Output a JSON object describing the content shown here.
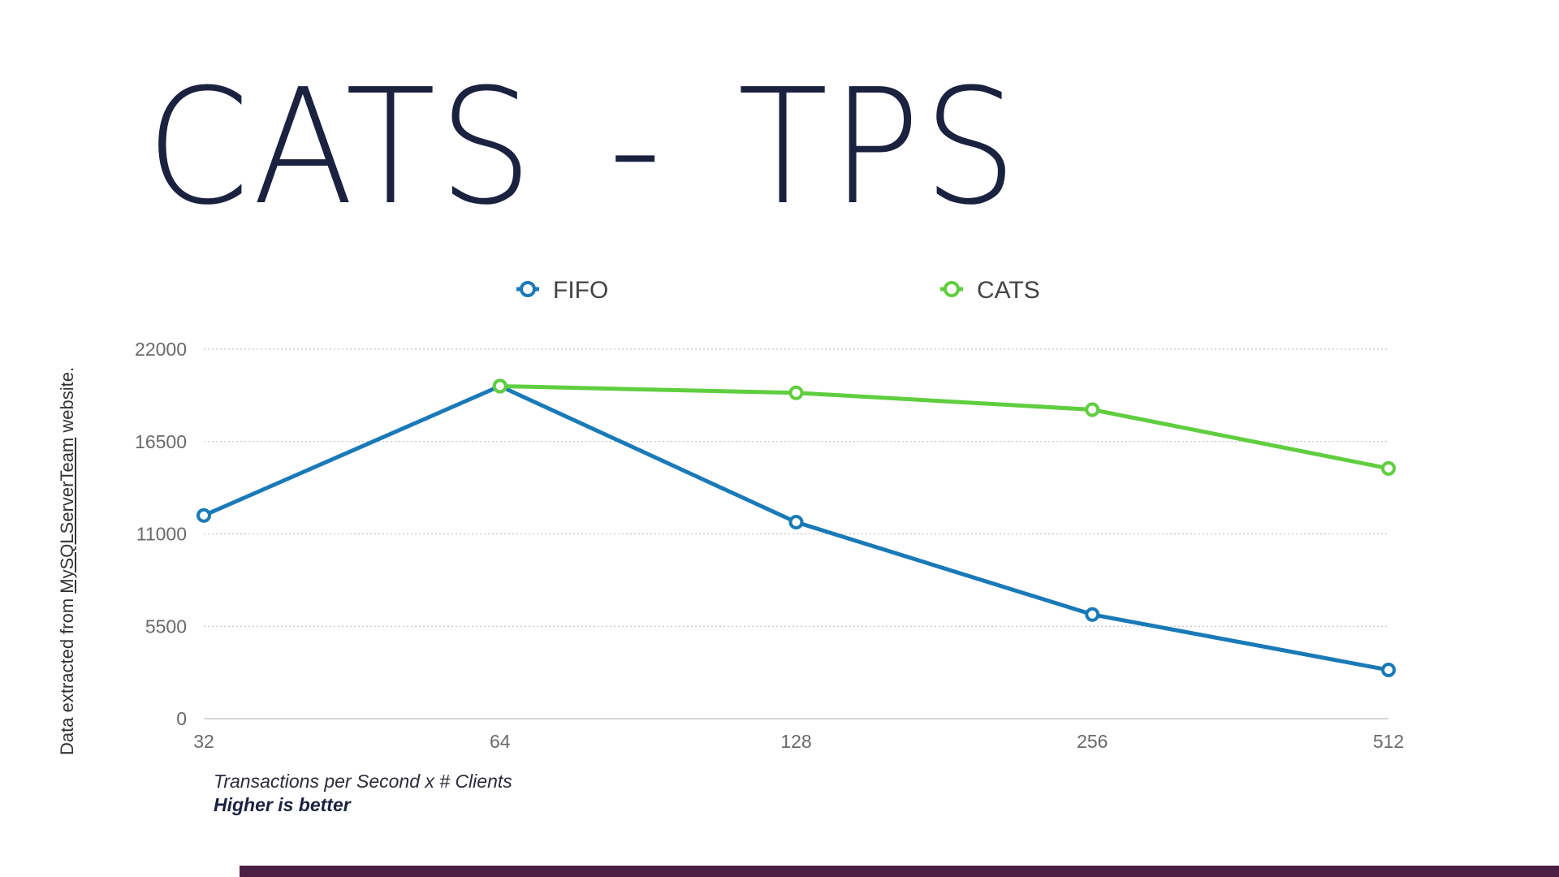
{
  "slide": {
    "title": "CATS - TPS",
    "side_note_prefix": "Data extracted from ",
    "side_note_link": "MySQLServerTeam",
    "side_note_suffix": " website.",
    "caption_line1": "Transactions per Second x # Clients",
    "caption_line2": "Higher is better",
    "bar_color": "#4b1f44"
  },
  "chart_data": {
    "type": "line",
    "categories": [
      "32",
      "64",
      "128",
      "256",
      "512"
    ],
    "series": [
      {
        "name": "FIFO",
        "color": "#1a7ab8",
        "values": [
          12100,
          19800,
          11700,
          6200,
          2900
        ]
      },
      {
        "name": "CATS",
        "color": "#5fce3f",
        "values": [
          null,
          19800,
          19400,
          18400,
          14900
        ]
      }
    ],
    "yticks": [
      0,
      5500,
      11000,
      16500,
      22000
    ],
    "ylim": [
      0,
      22000
    ],
    "grid": true,
    "legend_position": "top-center"
  }
}
